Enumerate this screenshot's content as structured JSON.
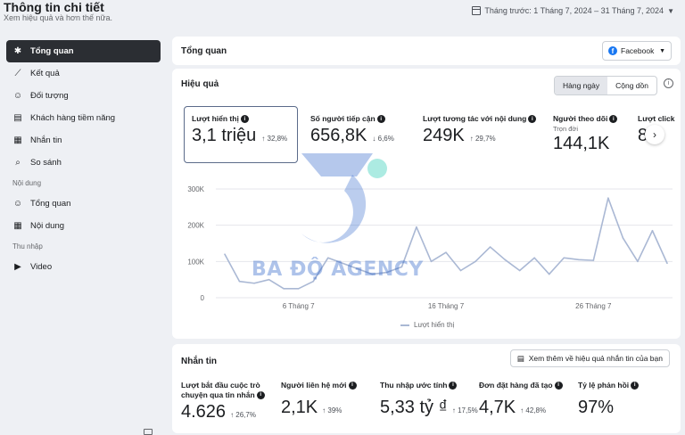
{
  "header": {
    "title": "Thông tin chi tiết",
    "subtitle": "Xem hiệu quả và hơn thế nữa.",
    "date_range": "Tháng trước: 1 Tháng 7, 2024 – 31 Tháng 7, 2024"
  },
  "sidebar": {
    "items": [
      {
        "label": "Tổng quan",
        "icon": "overview-icon",
        "active": true
      },
      {
        "label": "Kết quả",
        "icon": "results-icon"
      },
      {
        "label": "Đối tượng",
        "icon": "audience-icon"
      },
      {
        "label": "Khách hàng tiềm năng",
        "icon": "leads-icon"
      },
      {
        "label": "Nhắn tin",
        "icon": "messages-icon"
      },
      {
        "label": "So sánh",
        "icon": "compare-icon"
      }
    ],
    "group_content": "Nội dung",
    "content_items": [
      {
        "label": "Tổng quan",
        "icon": "content-overview-icon"
      },
      {
        "label": "Nội dung",
        "icon": "content-table-icon"
      }
    ],
    "group_income": "Thu nhập",
    "income_items": [
      {
        "label": "Video",
        "icon": "video-icon"
      }
    ]
  },
  "overview_card": {
    "title": "Tổng quan",
    "platform": "Facebook"
  },
  "performance": {
    "title": "Hiệu quả",
    "toggle": {
      "daily": "Hàng ngày",
      "cumulative": "Cộng dồn"
    },
    "metrics": [
      {
        "label": "Lượt hiển thị",
        "value": "3,1 triệu",
        "change": "↑ 32,8%",
        "selected": true
      },
      {
        "label": "Số người tiếp cận",
        "value": "656,8K",
        "change": "↓ 6,6%"
      },
      {
        "label": "Lượt tương tác với nội dung",
        "value": "249K",
        "change": "↑ 29,7%"
      },
      {
        "label": "Người theo dõi",
        "sub": "Trọn đời",
        "value": "144,1K"
      },
      {
        "label": "Lượt click",
        "value": "8"
      }
    ]
  },
  "chart_data": {
    "type": "line",
    "y_ticks": [
      "300K",
      "200K",
      "100K",
      "0"
    ],
    "ylim": [
      0,
      300000
    ],
    "x_ticks": [
      {
        "day": 6,
        "label": "6 Tháng 7"
      },
      {
        "day": 16,
        "label": "16 Tháng 7"
      },
      {
        "day": 26,
        "label": "26 Tháng 7"
      }
    ],
    "xlim": [
      1,
      31
    ],
    "series": [
      {
        "name": "Lượt hiển thị",
        "color": "#aab8d4",
        "x": [
          1,
          2,
          3,
          4,
          5,
          6,
          7,
          8,
          9,
          10,
          11,
          12,
          13,
          14,
          15,
          16,
          17,
          18,
          19,
          20,
          21,
          22,
          23,
          24,
          25,
          26,
          27,
          28,
          29,
          30,
          31
        ],
        "values": [
          120000,
          45000,
          40000,
          50000,
          25000,
          25000,
          45000,
          110000,
          95000,
          80000,
          65000,
          70000,
          85000,
          195000,
          100000,
          125000,
          75000,
          100000,
          140000,
          105000,
          75000,
          110000,
          65000,
          110000,
          105000,
          103000,
          275000,
          165000,
          100000,
          185000,
          95000
        ]
      }
    ]
  },
  "watermark": "BA ĐỘ AGENCY",
  "messages": {
    "title": "Nhắn tin",
    "more_button": "Xem thêm về hiệu quả nhắn tin của bạn",
    "metrics": [
      {
        "label": "Lượt bắt đầu cuộc trò chuyện qua tin nhắn",
        "value": "4.626",
        "change": "↑ 26,7%"
      },
      {
        "label": "Người liên hệ mới",
        "value": "2,1K",
        "change": "↑ 39%"
      },
      {
        "label": "Thu nhập ước tính",
        "value": "5,33 tỷ ₫",
        "change": "↑ 17,5%"
      },
      {
        "label": "Đơn đặt hàng đã tạo",
        "value": "4,7K",
        "change": "↑ 42,8%"
      },
      {
        "label": "Tỷ lệ phản hồi",
        "value": "97%"
      }
    ]
  }
}
